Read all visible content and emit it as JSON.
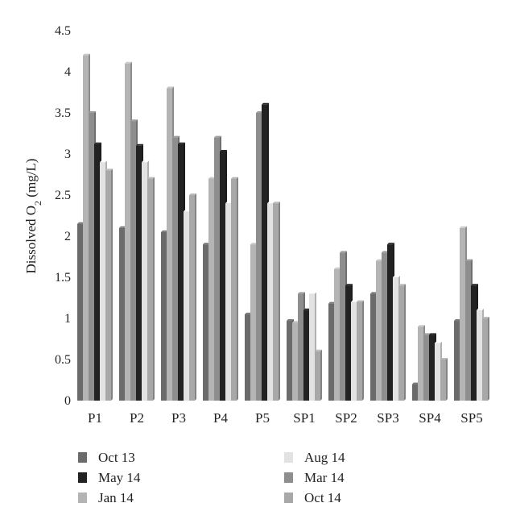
{
  "chart_data": {
    "type": "bar",
    "title": "",
    "xlabel": "",
    "ylabel": "Dissolved O2 (mg/L)",
    "ylabel_main": "Dissolved O",
    "ylabel_sub": "2",
    "ylabel_unit": " (mg/L)",
    "ylim": [
      0,
      4.5
    ],
    "yticks": [
      "0",
      "0.5",
      "1",
      "1.5",
      "2",
      "2.5",
      "3",
      "3.5",
      "4",
      "4.5"
    ],
    "ytick_values": [
      0,
      0.5,
      1,
      1.5,
      2,
      2.5,
      3,
      3.5,
      4,
      4.5
    ],
    "grid": false,
    "legend_position": "bottom",
    "categories": [
      "P1",
      "P2",
      "P3",
      "P4",
      "P5",
      "SP1",
      "SP2",
      "SP3",
      "SP4",
      "SP5"
    ],
    "series": [
      {
        "name": "Oct 13",
        "color": "#6b6b6b",
        "values": [
          2.15,
          2.1,
          2.05,
          1.9,
          1.05,
          0.97,
          1.18,
          1.3,
          0.2,
          0.97
        ]
      },
      {
        "name": "Jan 14",
        "color": "#b4b4b4",
        "values": [
          4.2,
          4.1,
          3.8,
          2.7,
          1.9,
          0.95,
          1.6,
          1.7,
          0.9,
          2.1
        ]
      },
      {
        "name": "Mar 14",
        "color": "#8e8e8e",
        "values": [
          3.5,
          3.4,
          3.2,
          3.2,
          3.5,
          1.3,
          1.8,
          1.8,
          0.8,
          1.7
        ]
      },
      {
        "name": "May 14",
        "color": "#222222",
        "values": [
          3.12,
          3.1,
          3.12,
          3.03,
          3.6,
          1.1,
          1.4,
          1.9,
          0.8,
          1.4
        ]
      },
      {
        "name": "Aug 14",
        "color": "#e2e2e2",
        "values": [
          2.9,
          2.9,
          2.3,
          2.4,
          2.4,
          1.3,
          1.2,
          1.5,
          0.7,
          1.1
        ]
      },
      {
        "name": "Oct 14",
        "color": "#a8a8a8",
        "values": [
          2.8,
          2.7,
          2.5,
          2.7,
          2.4,
          0.6,
          1.2,
          1.4,
          0.5,
          1.0
        ]
      }
    ],
    "legend": {
      "left": [
        "Oct 13",
        "May 14",
        "Jan 14"
      ],
      "right": [
        "Aug 14",
        "Mar 14",
        "Oct 14"
      ]
    }
  }
}
